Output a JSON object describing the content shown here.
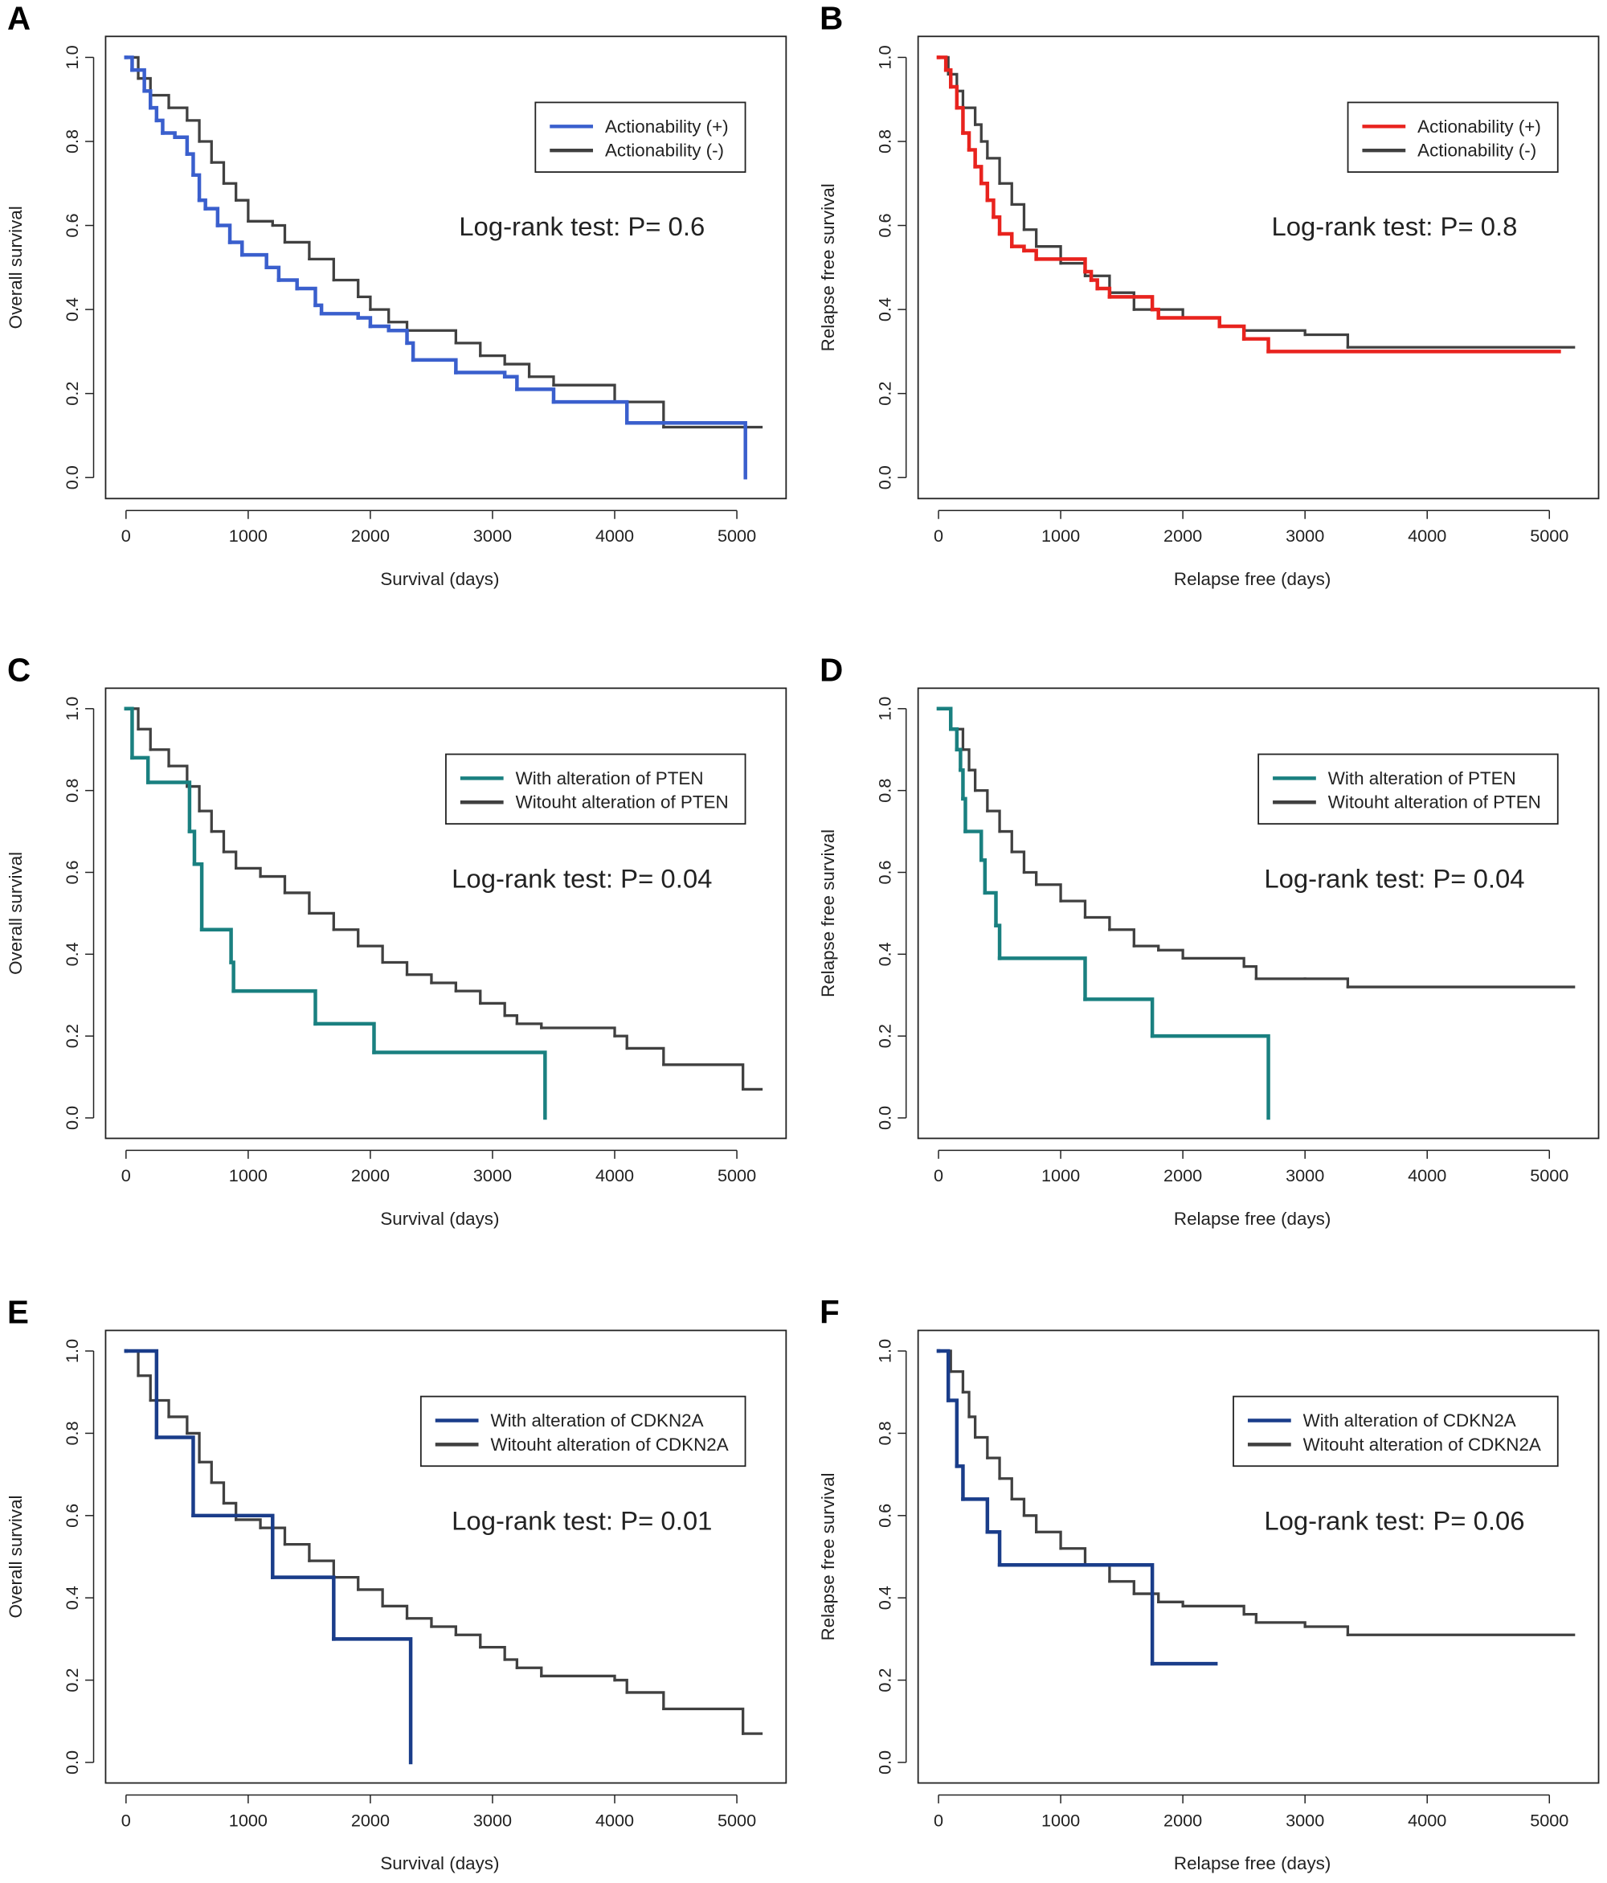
{
  "chart_data": [
    {
      "type": "line",
      "drawstyle": "steps-post",
      "panel": "A",
      "xlabel": "Survival (days)",
      "ylabel": "Overall survival",
      "annotation": "Log-rank test: P= 0.6",
      "legend": "upper right",
      "xlim": [
        -167,
        5403
      ],
      "ylim": [
        -0.05,
        1.05
      ],
      "xticks": [
        0,
        1000,
        2000,
        3000,
        4000,
        5000
      ],
      "yticks": [
        {
          "value": 0,
          "label": "0.0"
        },
        0.2,
        0.4,
        0.6,
        0.8,
        {
          "value": 1,
          "label": "1.0"
        }
      ],
      "series": [
        {
          "name": "Actionability (+)",
          "color": "#3a5fcd",
          "x": [
            0,
            50,
            150,
            200,
            250,
            300,
            400,
            500,
            550,
            600,
            650,
            750,
            850,
            950,
            1150,
            1250,
            1400,
            1550,
            1600,
            1900,
            2000,
            2150,
            2300,
            2350,
            2700,
            3100,
            3200,
            3500,
            4100,
            5070
          ],
          "values": [
            1.0,
            0.97,
            0.92,
            0.88,
            0.85,
            0.82,
            0.81,
            0.77,
            0.72,
            0.66,
            0.64,
            0.6,
            0.56,
            0.53,
            0.5,
            0.47,
            0.45,
            0.41,
            0.39,
            0.38,
            0.36,
            0.35,
            0.32,
            0.28,
            0.25,
            0.24,
            0.21,
            0.18,
            0.13,
            0.0
          ]
        },
        {
          "name": "Actionability (-)",
          "color": "#404040",
          "x": [
            0,
            100,
            200,
            350,
            500,
            600,
            700,
            800,
            900,
            1000,
            1200,
            1300,
            1500,
            1700,
            1900,
            2000,
            2150,
            2300,
            2700,
            2900,
            3100,
            3300,
            3500,
            4000,
            4400,
            5200
          ],
          "values": [
            1.0,
            0.95,
            0.91,
            0.88,
            0.85,
            0.8,
            0.75,
            0.7,
            0.66,
            0.61,
            0.6,
            0.56,
            0.52,
            0.47,
            0.43,
            0.4,
            0.37,
            0.35,
            0.32,
            0.29,
            0.27,
            0.24,
            0.22,
            0.18,
            0.12,
            0.12
          ]
        }
      ]
    },
    {
      "type": "line",
      "drawstyle": "steps-post",
      "panel": "B",
      "xlabel": "Relapse free (days)",
      "ylabel": "Relapse free survival",
      "annotation": "Log-rank test: P= 0.8",
      "legend": "upper right",
      "xlim": [
        -167,
        5403
      ],
      "ylim": [
        -0.05,
        1.05
      ],
      "xticks": [
        0,
        1000,
        2000,
        3000,
        4000,
        5000
      ],
      "yticks": [
        {
          "value": 0,
          "label": "0.0"
        },
        0.2,
        0.4,
        0.6,
        0.8,
        {
          "value": 1,
          "label": "1.0"
        }
      ],
      "series": [
        {
          "name": "Actionability (+)",
          "color": "#e8231e",
          "x": [
            0,
            60,
            100,
            150,
            200,
            250,
            300,
            350,
            400,
            450,
            500,
            600,
            700,
            800,
            1200,
            1250,
            1300,
            1400,
            1750,
            1800,
            2300,
            2500,
            2700,
            5080
          ],
          "values": [
            1.0,
            0.97,
            0.93,
            0.88,
            0.82,
            0.78,
            0.74,
            0.7,
            0.66,
            0.62,
            0.58,
            0.55,
            0.54,
            0.52,
            0.49,
            0.47,
            0.45,
            0.43,
            0.4,
            0.38,
            0.36,
            0.33,
            0.3,
            0.3
          ]
        },
        {
          "name": "Actionability (-)",
          "color": "#404040",
          "x": [
            0,
            80,
            150,
            200,
            300,
            350,
            400,
            500,
            600,
            700,
            800,
            1000,
            1200,
            1400,
            1600,
            2000,
            2300,
            2500,
            3000,
            3350,
            5200
          ],
          "values": [
            1.0,
            0.96,
            0.92,
            0.88,
            0.84,
            0.8,
            0.76,
            0.7,
            0.65,
            0.59,
            0.55,
            0.51,
            0.48,
            0.44,
            0.4,
            0.38,
            0.36,
            0.35,
            0.34,
            0.31,
            0.31
          ]
        }
      ]
    },
    {
      "type": "line",
      "drawstyle": "steps-post",
      "panel": "C",
      "xlabel": "Survival (days)",
      "ylabel": "Overall survival",
      "annotation": "Log-rank test: P= 0.04",
      "legend": "upper right",
      "xlim": [
        -167,
        5403
      ],
      "ylim": [
        -0.05,
        1.05
      ],
      "xticks": [
        0,
        1000,
        2000,
        3000,
        4000,
        5000
      ],
      "yticks": [
        {
          "value": 0,
          "label": "0.0"
        },
        0.2,
        0.4,
        0.6,
        0.8,
        {
          "value": 1,
          "label": "1.0"
        }
      ],
      "series": [
        {
          "name": "With alteration of PTEN",
          "color": "#1a8080",
          "x": [
            0,
            50,
            180,
            520,
            560,
            620,
            860,
            880,
            1550,
            2030,
            3430
          ],
          "values": [
            1.0,
            0.88,
            0.82,
            0.7,
            0.62,
            0.46,
            0.38,
            0.31,
            0.23,
            0.16,
            0.0
          ]
        },
        {
          "name": "Witouht alteration of PTEN",
          "color": "#404040",
          "x": [
            0,
            100,
            200,
            350,
            500,
            600,
            700,
            800,
            900,
            1100,
            1300,
            1500,
            1700,
            1900,
            2100,
            2300,
            2500,
            2700,
            2900,
            3100,
            3200,
            3400,
            4000,
            4100,
            4400,
            5050,
            5200
          ],
          "values": [
            1.0,
            0.95,
            0.9,
            0.86,
            0.81,
            0.75,
            0.7,
            0.65,
            0.61,
            0.59,
            0.55,
            0.5,
            0.46,
            0.42,
            0.38,
            0.35,
            0.33,
            0.31,
            0.28,
            0.25,
            0.23,
            0.22,
            0.2,
            0.17,
            0.13,
            0.07,
            0.07
          ]
        }
      ]
    },
    {
      "type": "line",
      "drawstyle": "steps-post",
      "panel": "D",
      "xlabel": "Relapse free (days)",
      "ylabel": "Relapse free survival",
      "annotation": "Log-rank test: P= 0.04",
      "legend": "upper right",
      "xlim": [
        -167,
        5403
      ],
      "ylim": [
        -0.05,
        1.05
      ],
      "xticks": [
        0,
        1000,
        2000,
        3000,
        4000,
        5000
      ],
      "yticks": [
        {
          "value": 0,
          "label": "0.0"
        },
        0.2,
        0.4,
        0.6,
        0.8,
        {
          "value": 1,
          "label": "1.0"
        }
      ],
      "series": [
        {
          "name": "With alteration of PTEN",
          "color": "#1a8080",
          "x": [
            0,
            100,
            150,
            180,
            200,
            220,
            350,
            380,
            470,
            500,
            1200,
            1750,
            2700
          ],
          "values": [
            1.0,
            0.95,
            0.9,
            0.85,
            0.78,
            0.7,
            0.63,
            0.55,
            0.47,
            0.39,
            0.29,
            0.2,
            0.0
          ]
        },
        {
          "name": "Witouht alteration of PTEN",
          "color": "#404040",
          "x": [
            0,
            100,
            200,
            250,
            300,
            400,
            500,
            600,
            700,
            800,
            1000,
            1200,
            1400,
            1600,
            1800,
            2000,
            2500,
            2600,
            3000,
            3350,
            5200
          ],
          "values": [
            1.0,
            0.95,
            0.9,
            0.85,
            0.8,
            0.75,
            0.7,
            0.65,
            0.6,
            0.57,
            0.53,
            0.49,
            0.46,
            0.42,
            0.41,
            0.39,
            0.37,
            0.34,
            0.34,
            0.32,
            0.32
          ]
        }
      ]
    },
    {
      "type": "line",
      "drawstyle": "steps-post",
      "panel": "E",
      "xlabel": "Survival (days)",
      "ylabel": "Overall survival",
      "annotation": "Log-rank test: P= 0.01",
      "legend": "upper right",
      "xlim": [
        -167,
        5403
      ],
      "ylim": [
        -0.05,
        1.05
      ],
      "xticks": [
        0,
        1000,
        2000,
        3000,
        4000,
        5000
      ],
      "yticks": [
        {
          "value": 0,
          "label": "0.0"
        },
        0.2,
        0.4,
        0.6,
        0.8,
        {
          "value": 1,
          "label": "1.0"
        }
      ],
      "series": [
        {
          "name": "With alteration of CDKN2A",
          "color": "#1a3d8a",
          "x": [
            0,
            250,
            550,
            1200,
            1700,
            2330
          ],
          "values": [
            1.0,
            0.79,
            0.6,
            0.45,
            0.3,
            0.0
          ]
        },
        {
          "name": "Witouht alteration of CDKN2A",
          "color": "#404040",
          "x": [
            0,
            100,
            200,
            350,
            500,
            600,
            700,
            800,
            900,
            1100,
            1300,
            1500,
            1700,
            1900,
            2100,
            2300,
            2500,
            2700,
            2900,
            3100,
            3200,
            3400,
            4000,
            4100,
            4400,
            5050,
            5200
          ],
          "values": [
            1.0,
            0.94,
            0.88,
            0.84,
            0.8,
            0.73,
            0.68,
            0.63,
            0.59,
            0.57,
            0.53,
            0.49,
            0.45,
            0.42,
            0.38,
            0.35,
            0.33,
            0.31,
            0.28,
            0.25,
            0.23,
            0.21,
            0.2,
            0.17,
            0.13,
            0.07,
            0.07
          ]
        }
      ]
    },
    {
      "type": "line",
      "drawstyle": "steps-post",
      "panel": "F",
      "xlabel": "Relapse free (days)",
      "ylabel": "Relapse free survival",
      "annotation": "Log-rank test: P= 0.06",
      "legend": "upper right",
      "xlim": [
        -167,
        5403
      ],
      "ylim": [
        -0.05,
        1.05
      ],
      "xticks": [
        0,
        1000,
        2000,
        3000,
        4000,
        5000
      ],
      "yticks": [
        {
          "value": 0,
          "label": "0.0"
        },
        0.2,
        0.4,
        0.6,
        0.8,
        {
          "value": 1,
          "label": "1.0"
        }
      ],
      "series": [
        {
          "name": "With alteration of CDKN2A",
          "color": "#1a3d8a",
          "x": [
            0,
            80,
            150,
            200,
            400,
            500,
            1750,
            2270
          ],
          "values": [
            1.0,
            0.88,
            0.72,
            0.64,
            0.56,
            0.48,
            0.24,
            0.24
          ]
        },
        {
          "name": "Witouht alteration of CDKN2A",
          "color": "#404040",
          "x": [
            0,
            100,
            200,
            250,
            300,
            400,
            500,
            600,
            700,
            800,
            1000,
            1200,
            1400,
            1600,
            1800,
            2000,
            2500,
            2600,
            3000,
            3350,
            5200
          ],
          "values": [
            1.0,
            0.95,
            0.9,
            0.84,
            0.79,
            0.74,
            0.69,
            0.64,
            0.6,
            0.56,
            0.52,
            0.48,
            0.44,
            0.41,
            0.39,
            0.38,
            0.36,
            0.34,
            0.33,
            0.31,
            0.31
          ]
        }
      ]
    }
  ]
}
